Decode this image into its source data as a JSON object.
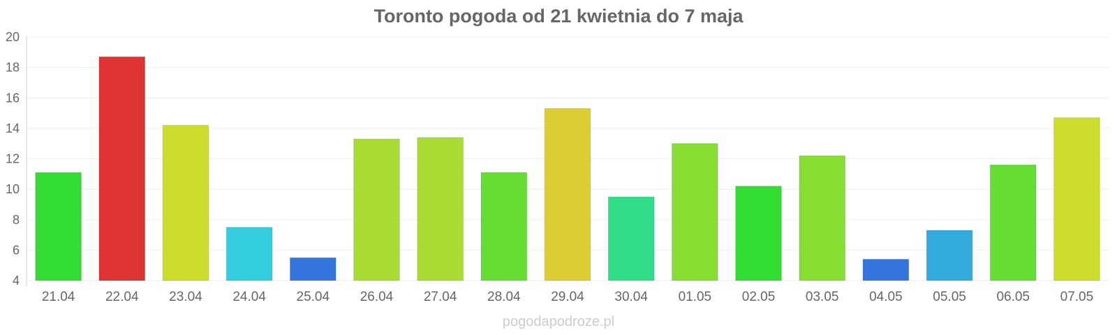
{
  "chart_data": {
    "type": "bar",
    "title": "Toronto pogoda od 21 kwietnia do 7 maja",
    "xlabel": "",
    "ylabel": "",
    "categories": [
      "21.04",
      "22.04",
      "23.04",
      "24.04",
      "25.04",
      "26.04",
      "27.04",
      "28.04",
      "29.04",
      "30.04",
      "01.05",
      "02.05",
      "03.05",
      "04.05",
      "05.05",
      "06.05",
      "07.05"
    ],
    "values": [
      11.1,
      18.7,
      14.2,
      7.5,
      5.5,
      13.3,
      13.4,
      11.1,
      15.3,
      9.5,
      13.0,
      10.2,
      12.2,
      5.4,
      7.3,
      11.6,
      14.7
    ],
    "colors": [
      "#33dd33",
      "#dd3333",
      "#ccdd2e",
      "#33cddd",
      "#3375dd",
      "#aadd33",
      "#aadd33",
      "#66dd33",
      "#ddcc33",
      "#33dd88",
      "#88dd33",
      "#33dd33",
      "#88dd33",
      "#3375dd",
      "#33aadd",
      "#66dd33",
      "#ccdd2e"
    ],
    "ylim": [
      4,
      20
    ],
    "yticks": [
      4,
      6,
      8,
      10,
      12,
      14,
      16,
      18,
      20
    ],
    "grid": true,
    "legend": "none"
  },
  "watermark": "pogodapodroze.pl"
}
